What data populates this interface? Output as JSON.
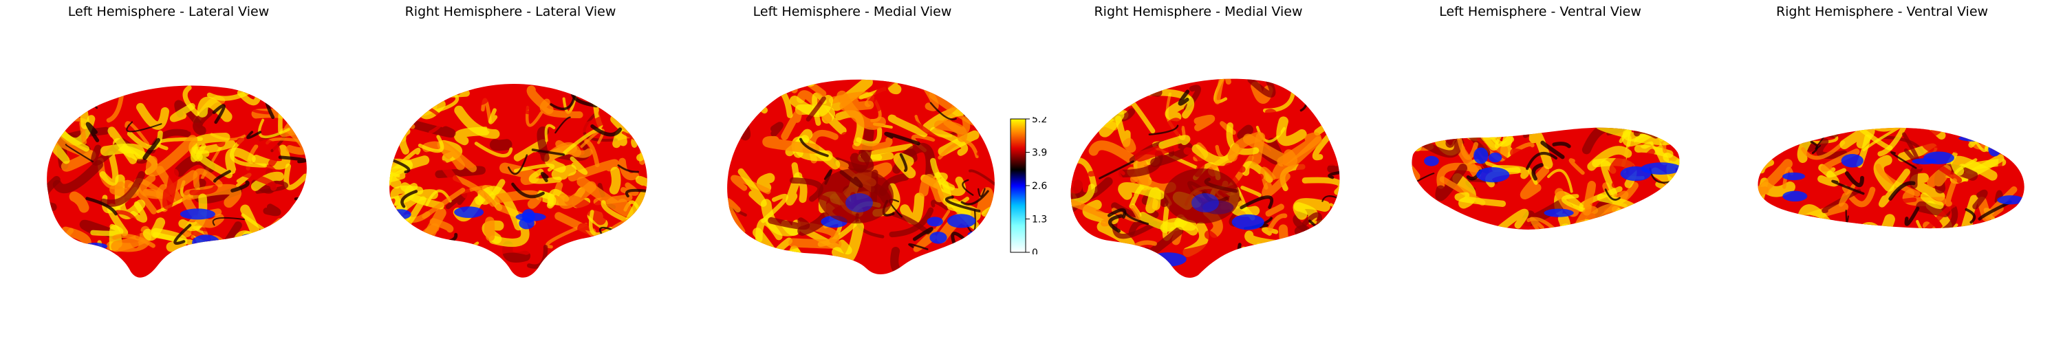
{
  "panels": [
    {
      "title": "Left Hemisphere - Lateral View",
      "view": "lateral",
      "hemisphere": "left"
    },
    {
      "title": "Right Hemisphere - Lateral View",
      "view": "lateral",
      "hemisphere": "right"
    },
    {
      "title": "Left Hemisphere - Medial View",
      "view": "medial",
      "hemisphere": "left"
    },
    {
      "title": "Right Hemisphere - Medial View",
      "view": "medial",
      "hemisphere": "right"
    },
    {
      "title": "Left Hemisphere - Ventral View",
      "view": "ventral",
      "hemisphere": "left"
    },
    {
      "title": "Right Hemisphere - Ventral View",
      "view": "ventral",
      "hemisphere": "right"
    }
  ],
  "colorbar": {
    "ticks": [
      "5.2",
      "3.9",
      "2.6",
      "1.3",
      "0"
    ],
    "range": [
      0,
      5.2
    ],
    "colormap": [
      "#ffffff",
      "#00ffff",
      "#0000ff",
      "#000000",
      "#ff0000",
      "#ffff00"
    ]
  },
  "colors": {
    "dark_red": "#8b0000",
    "red": "#e60000",
    "orange": "#ff8c00",
    "yellow": "#ffee00",
    "blue": "#0022ff",
    "black": "#1a0000"
  }
}
